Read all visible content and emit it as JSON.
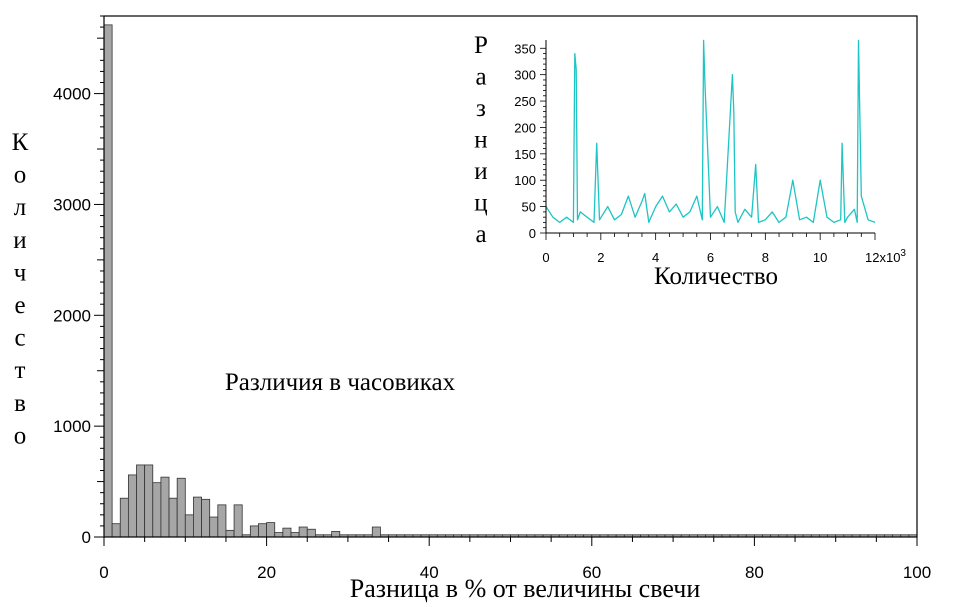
{
  "chart_data": [
    {
      "type": "bar",
      "title": "",
      "annotation": "Различия в часовиках",
      "xlabel": "Разница в % от величины свечи",
      "ylabel": "Количество",
      "xlim": [
        0,
        100
      ],
      "ylim": [
        0,
        4700
      ],
      "xticks": [
        0,
        20,
        40,
        60,
        80,
        100
      ],
      "yticks": [
        0,
        1000,
        2000,
        3000,
        4000
      ],
      "bin_width": 1,
      "colors": {
        "bar_fill": "#a6a6a6",
        "bar_stroke": "#333333"
      },
      "grid": false,
      "legend": "none",
      "values": [
        4620,
        120,
        350,
        560,
        650,
        650,
        490,
        540,
        350,
        530,
        200,
        360,
        340,
        180,
        290,
        60,
        290,
        20,
        100,
        120,
        130,
        40,
        80,
        40,
        90,
        70,
        20,
        20,
        50,
        20,
        20,
        20,
        20,
        90,
        20,
        20,
        20,
        20,
        20,
        20,
        20,
        20,
        20,
        20,
        20,
        20,
        20,
        20,
        20,
        20,
        20,
        20,
        20,
        20,
        20,
        20,
        20,
        20,
        20,
        20,
        20,
        20,
        20,
        20,
        20,
        20,
        20,
        20,
        20,
        20,
        20,
        20,
        20,
        20,
        20,
        20,
        20,
        20,
        20,
        20,
        20,
        20,
        20,
        20,
        20,
        20,
        20,
        20,
        20,
        20,
        20,
        20,
        20,
        20,
        20,
        20,
        20,
        20,
        20,
        20
      ]
    },
    {
      "type": "line",
      "title": "",
      "xlabel": "Количество",
      "ylabel": "Разница",
      "xlim": [
        0,
        12000
      ],
      "ylim": [
        0,
        360
      ],
      "xticks": [
        0,
        2,
        4,
        6,
        8,
        10,
        12
      ],
      "xtick_labels": [
        "0",
        "2",
        "4",
        "6",
        "8",
        "10",
        "12x10"
      ],
      "x_exponent": "3",
      "yticks": [
        0,
        50,
        100,
        150,
        200,
        250,
        300,
        350
      ],
      "colors": {
        "line": "#1fc4c4"
      },
      "grid": false,
      "legend": "none",
      "x": [
        0,
        250,
        500,
        750,
        1000,
        1050,
        1100,
        1150,
        1250,
        1500,
        1750,
        1850,
        1950,
        2250,
        2500,
        2750,
        3000,
        3250,
        3500,
        3600,
        3750,
        4000,
        4250,
        4500,
        4750,
        5000,
        5250,
        5500,
        5700,
        5750,
        5800,
        6000,
        6250,
        6500,
        6800,
        6850,
        6900,
        7000,
        7250,
        7500,
        7650,
        7750,
        8000,
        8250,
        8500,
        8750,
        9000,
        9250,
        9500,
        9750,
        10000,
        10250,
        10500,
        10750,
        10800,
        10900,
        11000,
        11250,
        11350,
        11400,
        11500,
        11750,
        12000
      ],
      "y": [
        50,
        30,
        20,
        30,
        20,
        340,
        310,
        25,
        40,
        30,
        20,
        170,
        25,
        50,
        25,
        35,
        70,
        30,
        60,
        75,
        20,
        50,
        70,
        40,
        55,
        30,
        40,
        70,
        25,
        365,
        280,
        30,
        50,
        20,
        300,
        230,
        40,
        20,
        45,
        30,
        130,
        20,
        25,
        40,
        20,
        30,
        100,
        25,
        30,
        20,
        100,
        30,
        20,
        25,
        170,
        20,
        30,
        45,
        20,
        365,
        70,
        25,
        20
      ]
    }
  ]
}
